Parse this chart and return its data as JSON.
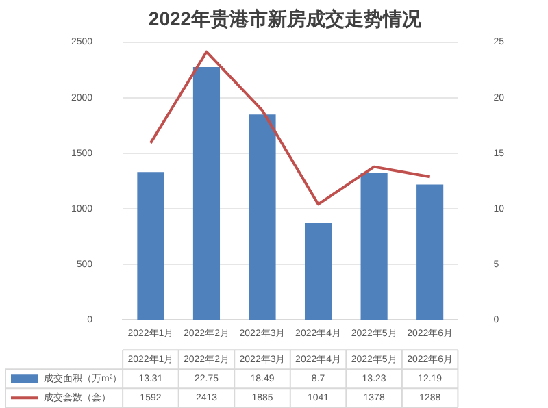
{
  "chart_data": {
    "type": "bar",
    "title": "2022年贵港市新房成交走势情况",
    "categories": [
      "2022年1月",
      "2022年2月",
      "2022年3月",
      "2022年4月",
      "2022年5月",
      "2022年6月"
    ],
    "series": [
      {
        "name": "成交面积（万m²）",
        "axis": "y2",
        "color": "#4f81bd",
        "values": [
          13.31,
          22.75,
          18.49,
          8.7,
          13.23,
          12.19
        ]
      },
      {
        "name": "成交套数（套）",
        "type": "line",
        "color": "#c0504d",
        "values": [
          1592,
          2413,
          1885,
          1041,
          1378,
          1288
        ]
      }
    ],
    "ylim": [
      0,
      2500
    ],
    "yticks": [
      0,
      500,
      1000,
      1500,
      2000,
      2500
    ],
    "y2lim": [
      0,
      25
    ],
    "y2ticks": [
      0,
      5,
      10,
      15,
      20,
      25
    ],
    "grid": "y",
    "legend": "bottom",
    "marker": "none",
    "data_labels": true
  }
}
